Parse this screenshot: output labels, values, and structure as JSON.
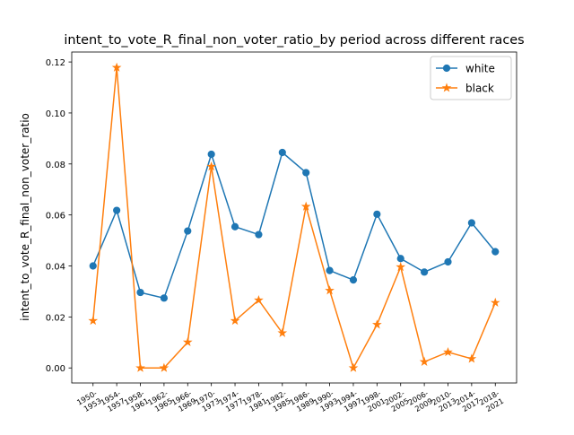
{
  "chart_data": {
    "type": "line",
    "title": "intent_to_vote_R_final_non_voter_ratio_by period across different races",
    "xlabel": "period",
    "ylabel": "intent_to_vote_R_final_non_voter_ratio",
    "categories": [
      "1950-\n1953",
      "1954-\n1957",
      "1958-\n1961",
      "1962-\n1965",
      "1966-\n1969",
      "1970-\n1973",
      "1974-\n1977",
      "1978-\n1981",
      "1982-\n1985",
      "1986-\n1989",
      "1990-\n1993",
      "1994-\n1997",
      "1998-\n2001",
      "2002-\n2005",
      "2006-\n2009",
      "2010-\n2013",
      "2014-\n2017",
      "2018-\n2021"
    ],
    "ylim": [
      -0.0059,
      0.1239
    ],
    "yticks": [
      0.0,
      0.02,
      0.04,
      0.06,
      0.08,
      0.1,
      0.12
    ],
    "ytick_labels": [
      "0.00",
      "0.02",
      "0.04",
      "0.06",
      "0.08",
      "0.10",
      "0.12"
    ],
    "grid": false,
    "legend_position": "top-right",
    "series": [
      {
        "name": "white",
        "color": "#1f77b4",
        "marker": "circle",
        "values": [
          0.04,
          0.0618,
          0.0296,
          0.0274,
          0.0537,
          0.0838,
          0.0554,
          0.0523,
          0.0845,
          0.0766,
          0.0382,
          0.0345,
          0.0603,
          0.0429,
          0.0376,
          0.0416,
          0.0569,
          0.0456
        ]
      },
      {
        "name": "black",
        "color": "#ff7f0e",
        "marker": "star",
        "values": [
          0.0185,
          0.1178,
          0.0,
          0.0,
          0.0101,
          0.079,
          0.0185,
          0.0266,
          0.0137,
          0.0633,
          0.0304,
          0.0,
          0.017,
          0.0396,
          0.0024,
          0.0062,
          0.0036,
          0.0256
        ]
      }
    ]
  }
}
